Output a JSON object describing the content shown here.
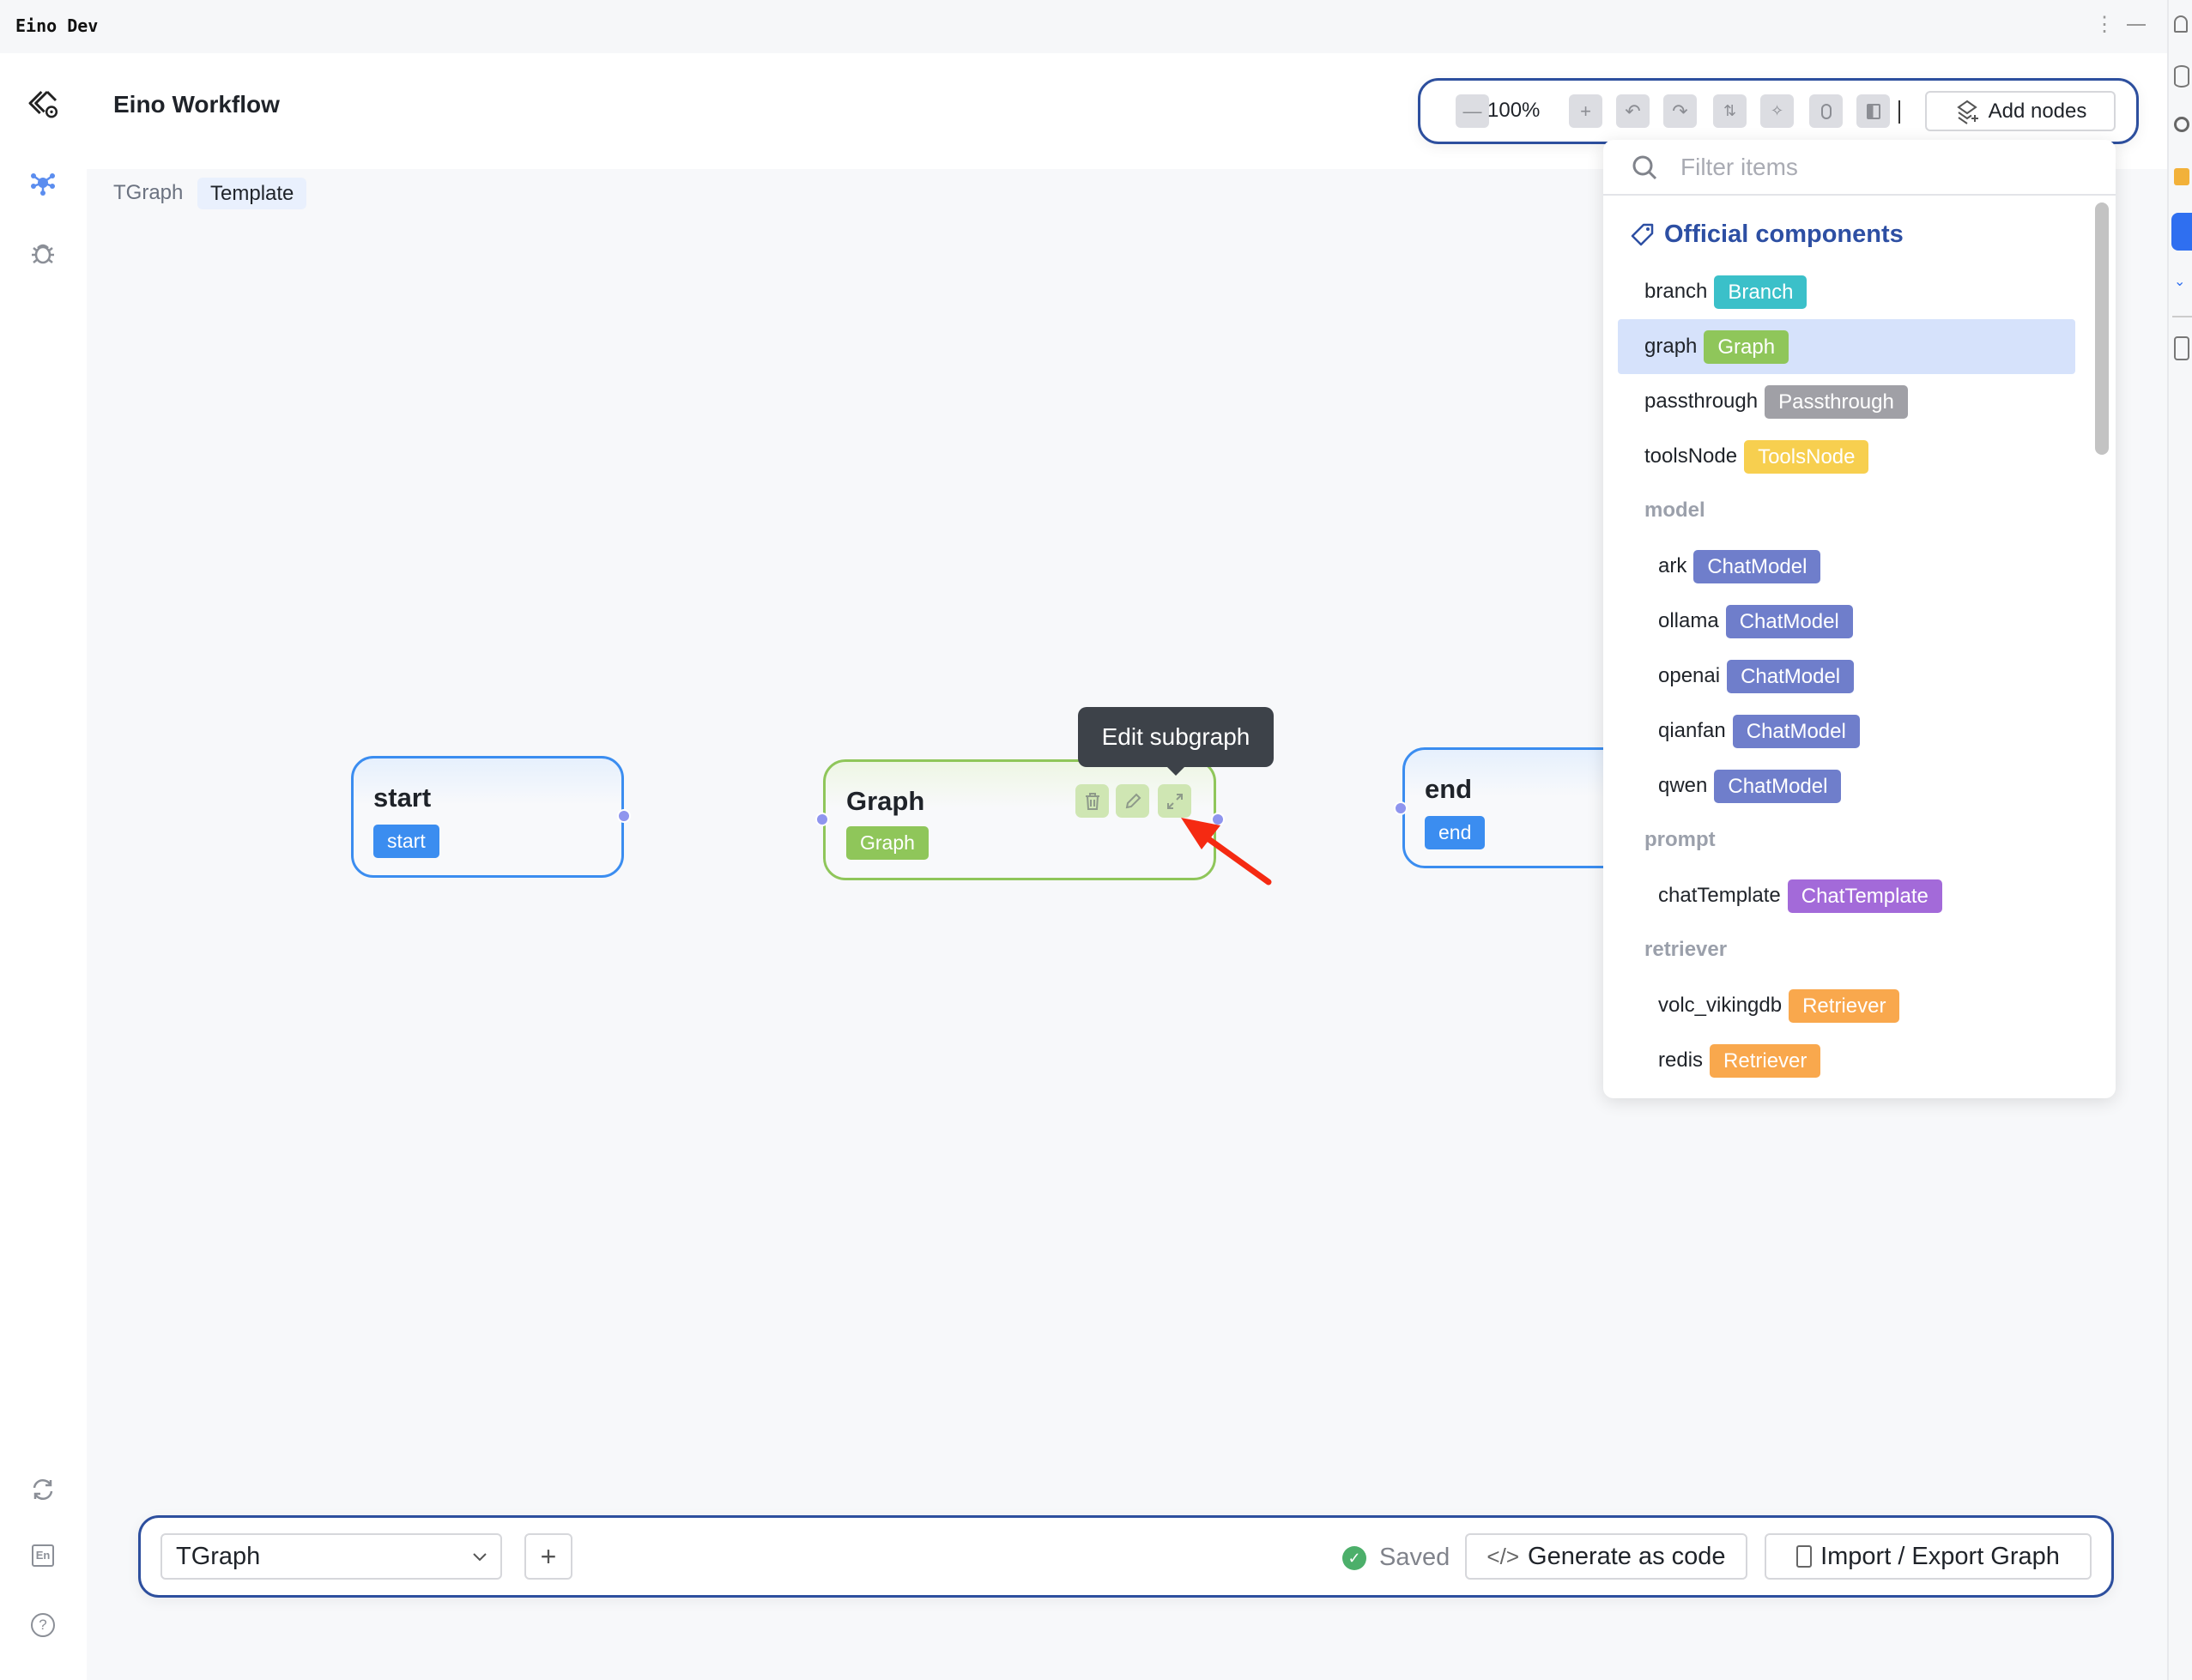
{
  "window": {
    "title": "Eino Dev"
  },
  "header": {
    "title": "Eino Workflow"
  },
  "breadcrumb": [
    "TGraph",
    "Template"
  ],
  "toolbar": {
    "zoom": "100%",
    "add_nodes_label": "Add nodes"
  },
  "panel": {
    "filter_placeholder": "Filter items",
    "section_title": "Official components",
    "rows": [
      {
        "name": "branch",
        "tag": "Branch",
        "color": "#3bc0c9",
        "selected": false
      },
      {
        "name": "graph",
        "tag": "Graph",
        "color": "#8fc65a",
        "selected": true
      },
      {
        "name": "passthrough",
        "tag": "Passthrough",
        "color": "#a0a0a6",
        "selected": false
      },
      {
        "name": "toolsNode",
        "tag": "ToolsNode",
        "color": "#f7cf4f",
        "selected": false
      }
    ],
    "groups": [
      {
        "label": "model",
        "items": [
          {
            "name": "ark",
            "tag": "ChatModel",
            "color": "#6f7ecb"
          },
          {
            "name": "ollama",
            "tag": "ChatModel",
            "color": "#6f7ecb"
          },
          {
            "name": "openai",
            "tag": "ChatModel",
            "color": "#6f7ecb"
          },
          {
            "name": "qianfan",
            "tag": "ChatModel",
            "color": "#6f7ecb"
          },
          {
            "name": "qwen",
            "tag": "ChatModel",
            "color": "#6f7ecb"
          }
        ]
      },
      {
        "label": "prompt",
        "items": [
          {
            "name": "chatTemplate",
            "tag": "ChatTemplate",
            "color": "#a36ad9"
          }
        ]
      },
      {
        "label": "retriever",
        "items": [
          {
            "name": "volc_vikingdb",
            "tag": "Retriever",
            "color": "#f9a84d"
          },
          {
            "name": "redis",
            "tag": "Retriever",
            "color": "#f9a84d"
          }
        ]
      }
    ]
  },
  "nodes": {
    "start": {
      "title": "start",
      "tag": "start"
    },
    "graph": {
      "title": "Graph",
      "tag": "Graph"
    },
    "end": {
      "title": "end",
      "tag": "end"
    }
  },
  "tooltip": "Edit subgraph",
  "bottom": {
    "graph_select": "TGraph",
    "status": "Saved",
    "generate_label": "Generate as code",
    "import_export_label": "Import / Export Graph"
  },
  "colors": {
    "accent": "#2d4f9e",
    "start_end": "#3b8df0",
    "graph": "#8fc65a",
    "handle": "#8f95ee",
    "annotation_arrow": "#f52a12"
  }
}
